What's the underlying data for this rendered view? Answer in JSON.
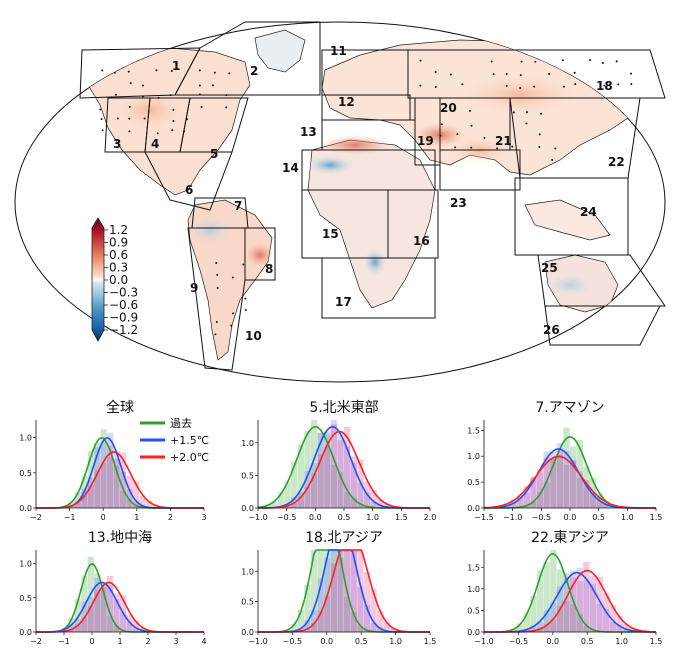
{
  "map": {
    "colorbar": {
      "ticks": [
        "1.2",
        "0.9",
        "0.6",
        "0.3",
        "0.0",
        "−0.3",
        "−0.6",
        "−0.9",
        "−1.2"
      ],
      "colors_top_to_bottom": [
        "#67001f",
        "#b2182b",
        "#d6604d",
        "#f4a582",
        "#fddbc7",
        "#f7f7f7",
        "#d1e5f0",
        "#92c5de",
        "#4393c3",
        "#2166ac",
        "#053061"
      ],
      "range": [
        -1.2,
        1.2
      ]
    },
    "regions": [
      "1",
      "2",
      "3",
      "4",
      "5",
      "6",
      "7",
      "8",
      "9",
      "10",
      "11",
      "12",
      "13",
      "14",
      "15",
      "16",
      "17",
      "18",
      "19",
      "20",
      "21",
      "22",
      "23",
      "24",
      "25",
      "26"
    ]
  },
  "legend": {
    "past": "過去",
    "plus15": "+1.5℃",
    "plus20": "+2.0℃",
    "colors": {
      "past": "#2ca02c",
      "plus15": "#1f4fff",
      "plus20": "#ff1f1f"
    }
  },
  "chart_data": [
    {
      "type": "line",
      "title": "全球",
      "xlim": [
        -2,
        3
      ],
      "ylim": [
        0,
        1.25
      ],
      "xticks": [
        "−2",
        "−1",
        "0",
        "1",
        "2",
        "3"
      ],
      "yticks": [
        "0.0",
        "0.5",
        "1.0"
      ],
      "series": [
        {
          "name": "過去",
          "mean": -0.05,
          "sd": 0.4
        },
        {
          "name": "+1.5℃",
          "mean": 0.12,
          "sd": 0.4
        },
        {
          "name": "+2.0℃",
          "mean": 0.32,
          "sd": 0.5
        }
      ]
    },
    {
      "type": "line",
      "title": "5.北米東部",
      "xlim": [
        -1,
        2
      ],
      "ylim": [
        0,
        1.35
      ],
      "xticks": [
        "−1.0",
        "−0.5",
        "0.0",
        "0.5",
        "1.0",
        "1.5",
        "2.0"
      ],
      "yticks": [
        "0.0",
        "0.5",
        "1.0"
      ],
      "series": [
        {
          "name": "過去",
          "mean": 0.0,
          "sd": 0.32
        },
        {
          "name": "+1.5℃",
          "mean": 0.3,
          "sd": 0.32
        },
        {
          "name": "+2.0℃",
          "mean": 0.42,
          "sd": 0.34
        }
      ]
    },
    {
      "type": "line",
      "title": "7.アマゾン",
      "xlim": [
        -1.5,
        1.5
      ],
      "ylim": [
        0,
        1.7
      ],
      "xticks": [
        "−1.5",
        "−1.0",
        "−0.5",
        "0.0",
        "0.5",
        "1.0",
        "1.5"
      ],
      "yticks": [
        "0.0",
        "0.5",
        "1.0",
        "1.5"
      ],
      "series": [
        {
          "name": "過去",
          "mean": 0.0,
          "sd": 0.29
        },
        {
          "name": "+1.5℃",
          "mean": -0.2,
          "sd": 0.35
        },
        {
          "name": "+2.0℃",
          "mean": -0.2,
          "sd": 0.4
        }
      ]
    },
    {
      "type": "line",
      "title": "13.地中海",
      "xlim": [
        -2,
        4
      ],
      "ylim": [
        0,
        1.2
      ],
      "xticks": [
        "−2",
        "−1",
        "0",
        "1",
        "2",
        "3",
        "4"
      ],
      "yticks": [
        "0.0",
        "0.5",
        "1.0"
      ],
      "series": [
        {
          "name": "過去",
          "mean": 0.0,
          "sd": 0.4
        },
        {
          "name": "+1.5℃",
          "mean": 0.35,
          "sd": 0.55
        },
        {
          "name": "+2.0℃",
          "mean": 0.6,
          "sd": 0.55
        }
      ]
    },
    {
      "type": "line",
      "title": "18.北アジア",
      "xlim": [
        -1,
        1.5
      ],
      "ylim": [
        0,
        1.35
      ],
      "xticks": [
        "−1.0",
        "−0.5",
        "0.0",
        "0.5",
        "1.0",
        "1.5"
      ],
      "yticks": [
        "0.0",
        "0.5",
        "1.0"
      ],
      "series": [
        {
          "name": "過去",
          "mean": 0.0,
          "sd": 0.2
        },
        {
          "name": "+1.5℃",
          "mean": 0.2,
          "sd": 0.22
        },
        {
          "name": "+2.0℃",
          "mean": 0.35,
          "sd": 0.24
        }
      ]
    },
    {
      "type": "line",
      "title": "22.東アジア",
      "xlim": [
        -1,
        1.5
      ],
      "ylim": [
        0,
        1.9
      ],
      "xticks": [
        "−1.0",
        "−0.5",
        "0.0",
        "0.5",
        "1.0",
        "1.5"
      ],
      "yticks": [
        "0.0",
        "0.5",
        "1.0",
        "1.5"
      ],
      "series": [
        {
          "name": "過去",
          "mean": 0.0,
          "sd": 0.22
        },
        {
          "name": "+1.5℃",
          "mean": 0.35,
          "sd": 0.29
        },
        {
          "name": "+2.0℃",
          "mean": 0.5,
          "sd": 0.28
        }
      ]
    }
  ]
}
